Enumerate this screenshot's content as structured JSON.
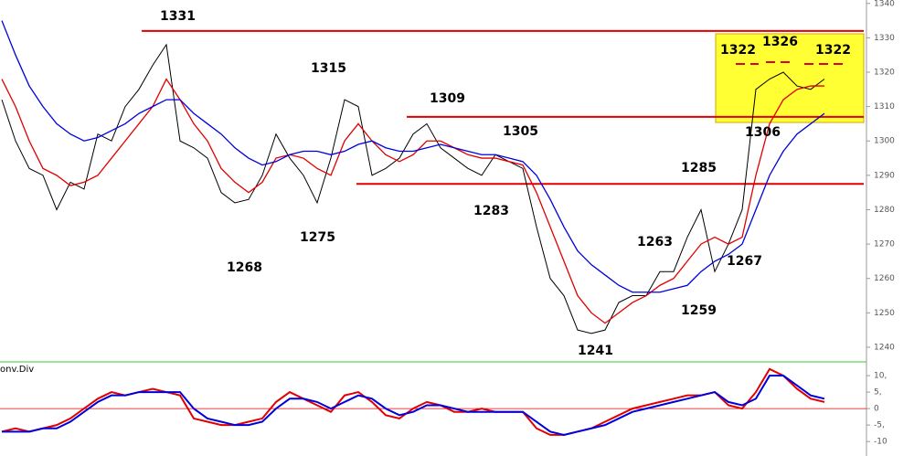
{
  "chart_data": {
    "type": "line",
    "annotations": [
      "1331",
      "1315",
      "1309",
      "1305",
      "1268",
      "1275",
      "1283",
      "1285",
      "1263",
      "1267",
      "1259",
      "1241",
      "1322",
      "1326",
      "1322",
      "1306"
    ],
    "ylim": [
      1236,
      1341
    ],
    "yticks": [
      1240,
      1250,
      1260,
      1270,
      1280,
      1290,
      1300,
      1310,
      1320,
      1330,
      1340
    ],
    "levels": [
      1332,
      1307,
      1287.5
    ],
    "series": [
      {
        "color": "#000000",
        "values": [
          1312,
          1300,
          1292,
          1290,
          1280,
          1288,
          1286,
          1302,
          1300,
          1310,
          1315,
          1322,
          1328,
          1300,
          1298,
          1295,
          1285,
          1282,
          1283,
          1290,
          1302,
          1295,
          1290,
          1282,
          1295,
          1312,
          1310,
          1290,
          1292,
          1295,
          1302,
          1305,
          1298,
          1295,
          1292,
          1290,
          1296,
          1294,
          1292,
          1275,
          1260,
          1255,
          1245,
          1244,
          1245,
          1253,
          1255,
          1255,
          1262,
          1262,
          1272,
          1280,
          1262,
          1270,
          1280,
          1315,
          1318,
          1320,
          1316,
          1315,
          1318
        ]
      },
      {
        "color": "#e00000",
        "values": [
          1318,
          1310,
          1300,
          1292,
          1290,
          1287,
          1288,
          1290,
          1295,
          1300,
          1305,
          1310,
          1318,
          1312,
          1305,
          1300,
          1292,
          1288,
          1285,
          1288,
          1295,
          1296,
          1295,
          1292,
          1290,
          1300,
          1305,
          1300,
          1296,
          1294,
          1296,
          1300,
          1300,
          1298,
          1296,
          1295,
          1295,
          1294,
          1293,
          1285,
          1275,
          1265,
          1255,
          1250,
          1247,
          1250,
          1253,
          1255,
          1258,
          1260,
          1265,
          1270,
          1272,
          1270,
          1272,
          1290,
          1305,
          1312,
          1315,
          1316,
          1316
        ]
      },
      {
        "color": "#0000dd",
        "values": [
          1335,
          1325,
          1316,
          1310,
          1305,
          1302,
          1300,
          1301,
          1303,
          1305,
          1308,
          1310,
          1312,
          1312,
          1308,
          1305,
          1302,
          1298,
          1295,
          1293,
          1294,
          1296,
          1297,
          1297,
          1296,
          1297,
          1299,
          1300,
          1298,
          1297,
          1297,
          1298,
          1299,
          1298,
          1297,
          1296,
          1296,
          1295,
          1294,
          1290,
          1283,
          1275,
          1268,
          1264,
          1261,
          1258,
          1256,
          1256,
          1256,
          1257,
          1258,
          1262,
          1265,
          1267,
          1270,
          1280,
          1290,
          1297,
          1302,
          1305,
          1308
        ]
      }
    ],
    "indicator": {
      "title": "onv.Div",
      "ylim": [
        -14.4,
        13.9
      ],
      "yticks": [
        {
          "value": 10,
          "label": "10,"
        },
        {
          "value": 5,
          "label": "5,"
        },
        0,
        {
          "value": -5,
          "label": "-5,"
        },
        {
          "value": -10,
          "label": "-10"
        }
      ],
      "series": [
        {
          "color": "#e00000",
          "values": [
            -7,
            -6,
            -7,
            -6,
            -5,
            -3,
            0,
            3,
            5,
            4,
            5,
            6,
            5,
            4,
            -3,
            -4,
            -5,
            -5,
            -4,
            -3,
            2,
            5,
            3,
            1,
            -1,
            4,
            5,
            2,
            -2,
            -3,
            0,
            2,
            1,
            -1,
            -1,
            0,
            -1,
            -1,
            -1,
            -6,
            -8,
            -8,
            -7,
            -6,
            -4,
            -2,
            0,
            1,
            2,
            3,
            4,
            4,
            5,
            1,
            0,
            5,
            12,
            10,
            6,
            3,
            2
          ]
        },
        {
          "color": "#0000dd",
          "values": [
            -7,
            -7,
            -7,
            -6,
            -6,
            -4,
            -1,
            2,
            4,
            4,
            5,
            5,
            5,
            5,
            0,
            -3,
            -4,
            -5,
            -5,
            -4,
            0,
            3,
            3,
            2,
            0,
            2,
            4,
            3,
            0,
            -2,
            -1,
            1,
            1,
            0,
            -1,
            -1,
            -1,
            -1,
            -1,
            -4,
            -7,
            -8,
            -7,
            -6,
            -5,
            -3,
            -1,
            0,
            1,
            2,
            3,
            4,
            5,
            2,
            1,
            3,
            10,
            10,
            7,
            4,
            3
          ]
        }
      ]
    }
  }
}
